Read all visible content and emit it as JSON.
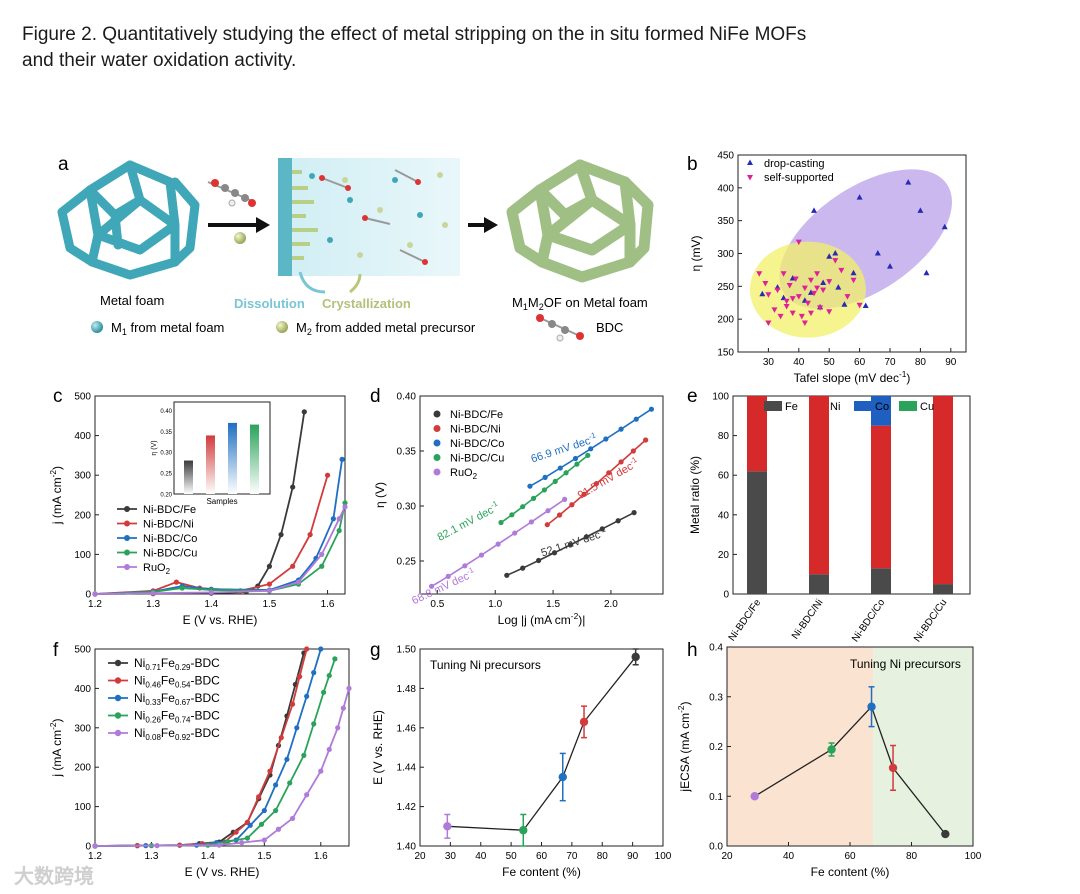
{
  "caption": {
    "line1": "Figure 2. Quantitatively studying the effect of metal stripping on the in situ formed NiFe MOFs",
    "line2": "and their water oxidation activity."
  },
  "colors": {
    "black": "#3a3a3a",
    "red": "#d23b3b",
    "blue": "#1f6fc2",
    "green": "#2aa35a",
    "purple": "#b07ad8",
    "foam": "#3fa7b8",
    "mof": "#9fbf85",
    "ellipse_purple": "#b9a0e8",
    "ellipse_yellow": "#f1f06a"
  },
  "panel_a": {
    "letter": "a",
    "metal_foam_label": "Metal foam",
    "product_label_pre": "M",
    "product_label_sub1": "1",
    "product_label_mid": "M",
    "product_label_sub2": "2",
    "product_label_post": "OF on Metal foam",
    "dissolution": "Dissolution",
    "crystallization": "Crystallization",
    "legend_m1_pre": "M",
    "legend_m1_sub": "1",
    "legend_m1_post": " from metal foam",
    "legend_m2_pre": "M",
    "legend_m2_sub": "2",
    "legend_m2_post": " from added metal precursor",
    "legend_bdc": "BDC"
  },
  "chart_data": [
    {
      "panel": "b",
      "type": "scatter",
      "xlabel": "Tafel slope (mV dec⁻¹)",
      "ylabel": "η (mV)",
      "xlim": [
        20,
        95
      ],
      "ylim": [
        150,
        450
      ],
      "xticks": [
        "30",
        "40",
        "50",
        "60",
        "70",
        "80",
        "90"
      ],
      "yticks": [
        "150",
        "200",
        "250",
        "300",
        "350",
        "400",
        "450"
      ],
      "series": [
        {
          "name": "drop-casting",
          "marker": "triangle-up",
          "color": "#2a2ab8",
          "x": [
            28,
            33,
            38,
            42,
            45,
            48,
            50,
            52,
            53,
            55,
            58,
            60,
            62,
            66,
            70,
            76,
            80,
            82,
            88,
            44,
            47,
            35
          ],
          "y": [
            238,
            248,
            262,
            228,
            365,
            255,
            295,
            300,
            248,
            222,
            270,
            385,
            220,
            300,
            280,
            408,
            365,
            270,
            340,
            240,
            218,
            232
          ]
        },
        {
          "name": "self-supported",
          "marker": "triangle-down",
          "color": "#e0209a",
          "x": [
            27,
            29,
            30,
            32,
            33,
            35,
            36,
            37,
            38,
            39,
            40,
            41,
            42,
            43,
            44,
            45,
            46,
            47,
            48,
            50,
            52,
            54,
            56,
            58,
            60,
            30,
            34,
            38,
            42,
            46,
            50,
            40,
            36,
            44
          ],
          "y": [
            270,
            255,
            238,
            215,
            245,
            270,
            228,
            252,
            210,
            262,
            235,
            205,
            248,
            225,
            260,
            240,
            270,
            218,
            245,
            212,
            290,
            275,
            235,
            260,
            222,
            195,
            205,
            232,
            195,
            248,
            258,
            318,
            220,
            210
          ]
        }
      ]
    },
    {
      "panel": "c",
      "type": "line",
      "xlabel": "E (V vs. RHE)",
      "ylabel": "j (mA cm⁻²)",
      "xlim": [
        1.2,
        1.63
      ],
      "ylim": [
        0,
        500
      ],
      "xticks": [
        "1.2",
        "1.3",
        "1.4",
        "1.5",
        "1.6"
      ],
      "yticks": [
        "0",
        "100",
        "200",
        "300",
        "400",
        "500"
      ],
      "series": [
        {
          "name": "Ni-BDC/Fe",
          "color": "#3a3a3a",
          "x": [
            1.2,
            1.3,
            1.4,
            1.46,
            1.48,
            1.5,
            1.52,
            1.54,
            1.56
          ],
          "y": [
            0,
            1,
            2,
            5,
            20,
            70,
            150,
            270,
            460
          ]
        },
        {
          "name": "Ni-BDC/Ni",
          "color": "#d23b3b",
          "x": [
            1.2,
            1.3,
            1.34,
            1.38,
            1.45,
            1.5,
            1.54,
            1.57,
            1.6
          ],
          "y": [
            0,
            8,
            30,
            15,
            8,
            25,
            70,
            150,
            300
          ]
        },
        {
          "name": "Ni-BDC/Co",
          "color": "#1f6fc2",
          "x": [
            1.2,
            1.3,
            1.35,
            1.4,
            1.5,
            1.55,
            1.58,
            1.61,
            1.625
          ],
          "y": [
            0,
            6,
            20,
            12,
            10,
            35,
            90,
            190,
            340
          ]
        },
        {
          "name": "Ni-BDC/Cu",
          "color": "#2aa35a",
          "x": [
            1.2,
            1.3,
            1.35,
            1.4,
            1.5,
            1.55,
            1.59,
            1.62,
            1.63
          ],
          "y": [
            0,
            5,
            15,
            10,
            8,
            25,
            70,
            160,
            230
          ]
        },
        {
          "name": "RuO2",
          "color": "#b07ad8",
          "x": [
            1.2,
            1.3,
            1.4,
            1.5,
            1.55,
            1.59,
            1.62,
            1.63
          ],
          "y": [
            0,
            2,
            4,
            8,
            30,
            100,
            190,
            220
          ]
        }
      ],
      "inset": {
        "type": "bar",
        "title": "Samples",
        "ylabel": "η (V)",
        "ylim": [
          0.2,
          0.42
        ],
        "yticks": [
          "0.20",
          "0.25",
          "0.30",
          "0.35",
          "0.40"
        ],
        "values": [
          0.28,
          0.34,
          0.37,
          0.366
        ],
        "colors": [
          "#3a3a3a",
          "#d23b3b",
          "#1f6fc2",
          "#2aa35a"
        ]
      }
    },
    {
      "panel": "d",
      "type": "line",
      "xlabel": "Log |j (mA cm⁻²)|",
      "ylabel": "η (V)",
      "xlim": [
        0.35,
        2.45
      ],
      "ylim": [
        0.22,
        0.4
      ],
      "xticks": [
        "0.5",
        "1.0",
        "1.5",
        "2.0"
      ],
      "yticks": [
        "0.25",
        "0.30",
        "0.35",
        "0.40"
      ],
      "series": [
        {
          "name": "Ni-BDC/Fe",
          "color": "#3a3a3a",
          "tafel": "52.1 mV dec⁻¹",
          "x": [
            1.1,
            2.2
          ],
          "y": [
            0.237,
            0.294
          ]
        },
        {
          "name": "Ni-BDC/Ni",
          "color": "#d23b3b",
          "tafel": "91.5 mV dec⁻¹",
          "x": [
            1.45,
            2.3
          ],
          "y": [
            0.283,
            0.36
          ]
        },
        {
          "name": "Ni-BDC/Co",
          "color": "#1f6fc2",
          "tafel": "66.9 mV dec⁻¹",
          "x": [
            1.3,
            2.35
          ],
          "y": [
            0.318,
            0.388
          ]
        },
        {
          "name": "Ni-BDC/Cu",
          "color": "#2aa35a",
          "tafel": "82.1 mV dec⁻¹",
          "x": [
            1.05,
            1.8
          ],
          "y": [
            0.285,
            0.346
          ]
        },
        {
          "name": "RuO2",
          "color": "#b07ad8",
          "tafel": "68.8 mV dec⁻¹",
          "x": [
            0.45,
            1.6
          ],
          "y": [
            0.227,
            0.306
          ]
        }
      ]
    },
    {
      "panel": "e",
      "type": "bar",
      "ylabel": "Metal ratio (%)",
      "ylim": [
        0,
        100
      ],
      "yticks": [
        "0",
        "20",
        "40",
        "60",
        "80",
        "100"
      ],
      "categories": [
        "Ni-BDC/Fe",
        "Ni-BDC/Ni",
        "Ni-BDC/Co",
        "Ni-BDC/Cu"
      ],
      "series": [
        {
          "name": "Fe",
          "color": "#4a4a4a",
          "values": [
            62,
            10,
            13,
            5
          ]
        },
        {
          "name": "Ni",
          "color": "#d62a2a",
          "values": [
            38,
            90,
            72,
            95
          ]
        },
        {
          "name": "Co",
          "color": "#1f5fc2",
          "values": [
            0,
            0,
            15,
            0
          ]
        },
        {
          "name": "Cu",
          "color": "#2aa35a",
          "values": [
            0,
            0,
            0,
            0
          ]
        }
      ]
    },
    {
      "panel": "f",
      "type": "line",
      "xlabel": "E (V vs. RHE)",
      "ylabel": "j (mA cm⁻²)",
      "xlim": [
        1.2,
        1.65
      ],
      "ylim": [
        0,
        500
      ],
      "xticks": [
        "1.2",
        "1.3",
        "1.4",
        "1.5",
        "1.6"
      ],
      "yticks": [
        "0",
        "100",
        "200",
        "300",
        "400",
        "500"
      ],
      "series": [
        {
          "name": "Ni0.71Fe0.29-BDC",
          "label_parts": [
            "Ni",
            "0.71",
            "Fe",
            "0.29",
            "-BDC"
          ],
          "color": "#3a3a3a",
          "x": [
            1.2,
            1.35,
            1.42,
            1.47,
            1.51,
            1.54,
            1.57
          ],
          "y": [
            0,
            2,
            10,
            60,
            180,
            330,
            490
          ]
        },
        {
          "name": "Ni0.46Fe0.54-BDC",
          "label_parts": [
            "Ni",
            "0.46",
            "Fe",
            "0.54",
            "-BDC"
          ],
          "color": "#d23b3b",
          "x": [
            1.2,
            1.35,
            1.43,
            1.47,
            1.51,
            1.55,
            1.575
          ],
          "y": [
            0,
            2,
            10,
            60,
            190,
            360,
            500
          ]
        },
        {
          "name": "Ni0.33Fe0.67-BDC",
          "label_parts": [
            "Ni",
            "0.33",
            "Fe",
            "0.67",
            "-BDC"
          ],
          "color": "#1f6fc2",
          "x": [
            1.2,
            1.38,
            1.45,
            1.5,
            1.54,
            1.575,
            1.6
          ],
          "y": [
            0,
            2,
            15,
            90,
            220,
            380,
            500
          ]
        },
        {
          "name": "Ni0.26Fe0.74-BDC",
          "label_parts": [
            "Ni",
            "0.26",
            "Fe",
            "0.74",
            "-BDC"
          ],
          "color": "#2aa35a",
          "x": [
            1.2,
            1.4,
            1.47,
            1.52,
            1.57,
            1.605,
            1.625
          ],
          "y": [
            0,
            2,
            20,
            90,
            230,
            390,
            475
          ]
        },
        {
          "name": "Ni0.08Fe0.92-BDC",
          "label_parts": [
            "Ni",
            "0.08",
            "Fe",
            "0.92",
            "-BDC"
          ],
          "color": "#b07ad8",
          "x": [
            1.2,
            1.42,
            1.5,
            1.55,
            1.6,
            1.63,
            1.65
          ],
          "y": [
            0,
            2,
            15,
            70,
            190,
            300,
            400
          ]
        }
      ]
    },
    {
      "panel": "g",
      "type": "line",
      "title": "Tuning Ni precursors",
      "xlabel": "Fe content (%)",
      "ylabel": "E (V vs. RHE)",
      "xlim": [
        20,
        100
      ],
      "ylim": [
        1.4,
        1.5
      ],
      "xticks": [
        "20",
        "30",
        "40",
        "50",
        "60",
        "70",
        "80",
        "90",
        "100"
      ],
      "yticks": [
        "1.40",
        "1.42",
        "1.44",
        "1.46",
        "1.48",
        "1.50"
      ],
      "x": [
        29,
        54,
        67,
        74,
        91
      ],
      "y": [
        1.41,
        1.408,
        1.435,
        1.463,
        1.496
      ],
      "err": [
        0.006,
        0.008,
        0.012,
        0.008,
        0.004
      ],
      "colors": [
        "#b07ad8",
        "#2aa35a",
        "#1f6fc2",
        "#d23b3b",
        "#3a3a3a"
      ]
    },
    {
      "panel": "h",
      "type": "line",
      "title": "Tuning Ni precursors",
      "xlabel": "Fe content (%)",
      "ylabel": "jECSA (mA cm⁻²)",
      "xlim": [
        20,
        100
      ],
      "ylim": [
        0.0,
        0.4
      ],
      "xticks": [
        "20",
        "40",
        "60",
        "80",
        "100"
      ],
      "yticks": [
        "0.0",
        "0.1",
        "0.2",
        "0.3",
        "0.4"
      ],
      "x": [
        29,
        54,
        67,
        74,
        91
      ],
      "y": [
        0.1,
        0.194,
        0.28,
        0.157,
        0.024
      ],
      "err": [
        0.004,
        0.013,
        0.04,
        0.045,
        0.004
      ],
      "colors": [
        "#b07ad8",
        "#2aa35a",
        "#1f6fc2",
        "#d23b3b",
        "#3a3a3a"
      ]
    }
  ],
  "watermark": "大数跨境"
}
